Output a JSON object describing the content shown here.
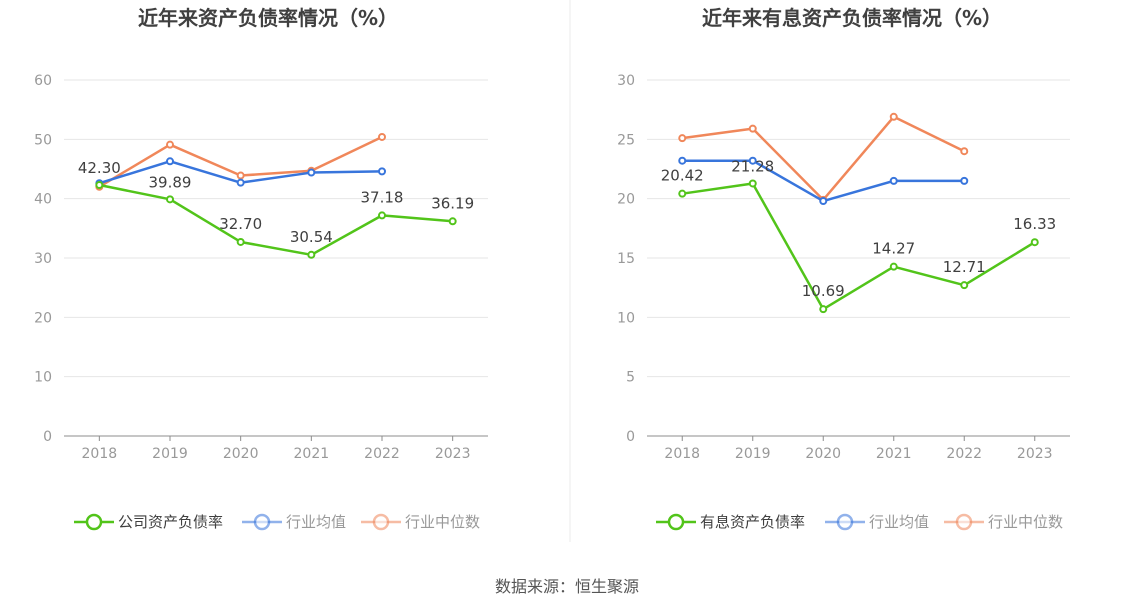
{
  "source_text": "数据来源：恒生聚源",
  "colors": {
    "company": "#52c41a",
    "avg": "#3875dc",
    "median": "#f0875a",
    "grid": "#e6e6e6",
    "axis": "#8c8c8c"
  },
  "chart_data": [
    {
      "type": "line",
      "title": "近年来资产负债率情况（%）",
      "categories": [
        "2018",
        "2019",
        "2020",
        "2021",
        "2022",
        "2023"
      ],
      "ylim": [
        0,
        60
      ],
      "yticks": [
        0,
        10,
        20,
        30,
        40,
        50,
        60
      ],
      "grid": true,
      "legend_position": "bottom",
      "series": [
        {
          "name": "公司资产负债率",
          "key": "company",
          "values": [
            42.3,
            39.89,
            32.7,
            30.54,
            37.18,
            36.19
          ],
          "labels": [
            "42.30",
            "39.89",
            "32.70",
            "30.54",
            "37.18",
            "36.19"
          ]
        },
        {
          "name": "行业均值",
          "key": "avg",
          "values": [
            42.6,
            46.3,
            42.7,
            44.4,
            44.6,
            null
          ]
        },
        {
          "name": "行业中位数",
          "key": "median",
          "values": [
            42.0,
            49.1,
            43.9,
            44.7,
            50.4,
            null
          ]
        }
      ]
    },
    {
      "type": "line",
      "title": "近年来有息资产负债率情况（%）",
      "categories": [
        "2018",
        "2019",
        "2020",
        "2021",
        "2022",
        "2023"
      ],
      "ylim": [
        0,
        30
      ],
      "yticks": [
        0,
        5,
        10,
        15,
        20,
        25,
        30
      ],
      "grid": true,
      "legend_position": "bottom",
      "series": [
        {
          "name": "有息资产负债率",
          "key": "company",
          "values": [
            20.42,
            21.28,
            10.69,
            14.27,
            12.71,
            16.33
          ],
          "labels": [
            "20.42",
            "21.28",
            "10.69",
            "14.27",
            "12.71",
            "16.33"
          ]
        },
        {
          "name": "行业均值",
          "key": "avg",
          "values": [
            23.2,
            23.2,
            19.8,
            21.5,
            21.5,
            null
          ]
        },
        {
          "name": "行业中位数",
          "key": "median",
          "values": [
            25.1,
            25.9,
            19.9,
            26.9,
            24.0,
            null
          ]
        }
      ]
    }
  ]
}
